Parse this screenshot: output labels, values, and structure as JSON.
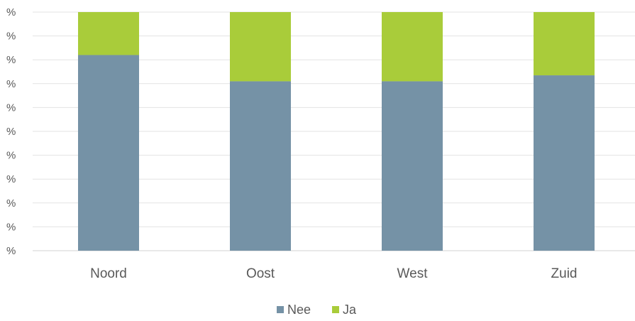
{
  "chart_data": {
    "type": "bar",
    "stacked": true,
    "percent_stacked": true,
    "categories": [
      "Noord",
      "Oost",
      "West",
      "Zuid"
    ],
    "series": [
      {
        "name": "Nee",
        "values": [
          82,
          71,
          71,
          73.5
        ],
        "color": "#7592a6"
      },
      {
        "name": "Ja",
        "values": [
          18,
          29,
          29,
          26.5
        ],
        "color": "#a9cc3a"
      }
    ],
    "ytick_labels": [
      "%",
      "%",
      "%",
      "%",
      "%",
      "%",
      "%",
      "%",
      "%",
      "%",
      "%"
    ],
    "ylim": [
      0,
      100
    ],
    "grid": true,
    "legend": {
      "position": "bottom",
      "entries": [
        "Nee",
        "Ja"
      ]
    }
  }
}
